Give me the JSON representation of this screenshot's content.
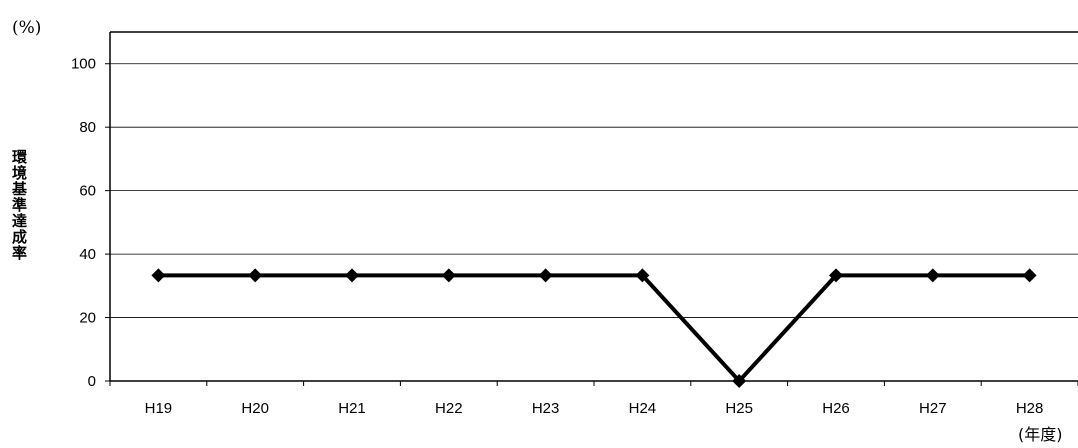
{
  "chart_data": {
    "type": "line",
    "unit_label": "(%)",
    "ylabel": "環境基準達成率",
    "xlabel": "(年度)",
    "categories": [
      "H19",
      "H20",
      "H21",
      "H22",
      "H23",
      "H24",
      "H25",
      "H26",
      "H27",
      "H28"
    ],
    "series": [
      {
        "values": [
          33.3,
          33.3,
          33.3,
          33.3,
          33.3,
          33.3,
          0,
          33.3,
          33.3,
          33.3
        ]
      }
    ],
    "ylim": [
      0,
      110
    ],
    "yticks": [
      0,
      20,
      40,
      60,
      80,
      100
    ],
    "grid": true,
    "legend": "none",
    "colors": {
      "line": "#000000",
      "marker": "#000000",
      "grid": "#000000"
    }
  }
}
